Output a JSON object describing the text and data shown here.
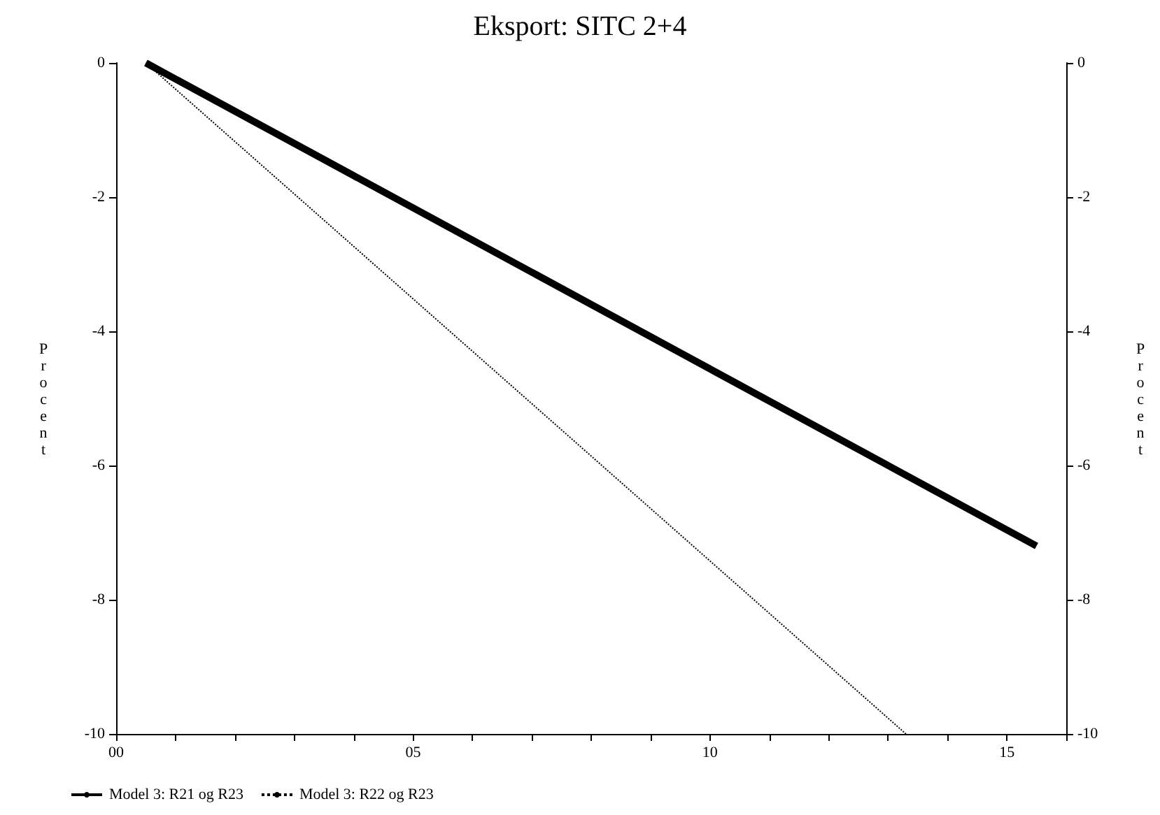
{
  "chart_data": {
    "type": "line",
    "title": "Eksport: SITC 2+4",
    "ylabel": "Procent",
    "y2label": "Procent",
    "xlim": [
      0,
      16
    ],
    "xticks": [
      {
        "value": 0,
        "label": "00"
      },
      {
        "value": 1,
        "label": null
      },
      {
        "value": 2,
        "label": null
      },
      {
        "value": 3,
        "label": null
      },
      {
        "value": 4,
        "label": null
      },
      {
        "value": 5,
        "label": "05"
      },
      {
        "value": 6,
        "label": null
      },
      {
        "value": 7,
        "label": null
      },
      {
        "value": 8,
        "label": null
      },
      {
        "value": 9,
        "label": null
      },
      {
        "value": 10,
        "label": "10"
      },
      {
        "value": 11,
        "label": null
      },
      {
        "value": 12,
        "label": null
      },
      {
        "value": 13,
        "label": null
      },
      {
        "value": 14,
        "label": null
      },
      {
        "value": 15,
        "label": "15"
      },
      {
        "value": 16,
        "label": null
      }
    ],
    "ylim": [
      -10,
      0
    ],
    "yticks": [
      -10,
      -8,
      -6,
      -4,
      -2,
      0
    ],
    "y2lim": [
      -10,
      0
    ],
    "y2ticks": [
      -10,
      -8,
      -6,
      -4,
      -2,
      0
    ],
    "legend": "bottom left",
    "grid": false,
    "marker": "none",
    "series": [
      {
        "name": "Model 3: R21 og R23",
        "color": "#000000",
        "line_style": "solid",
        "x": [
          0.5,
          15.5
        ],
        "values": [
          0,
          -7.2
        ]
      },
      {
        "name": "Model 3: R22 og R23",
        "color": "#000000",
        "line_style": "dotted",
        "x": [
          0.5,
          13.3
        ],
        "values": [
          0,
          -10
        ]
      }
    ]
  }
}
